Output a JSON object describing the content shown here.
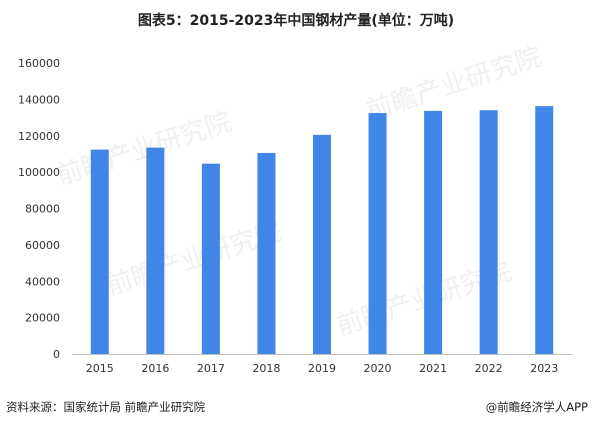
{
  "chart_data": {
    "type": "bar",
    "title": "图表5：2015-2023年中国钢材产量(单位：万吨)",
    "categories": [
      "2015",
      "2016",
      "2017",
      "2018",
      "2019",
      "2020",
      "2021",
      "2022",
      "2023"
    ],
    "series": [
      {
        "values": [
          112350,
          113460,
          104640,
          110550,
          120480,
          132490,
          133670,
          134030,
          136270
        ]
      }
    ],
    "ylim": [
      0,
      160000
    ],
    "yticks": [
      0,
      20000,
      40000,
      60000,
      80000,
      100000,
      120000,
      140000,
      160000
    ],
    "xlabel": "",
    "ylabel": "",
    "grid": false,
    "bar_color": "#3f86e6"
  },
  "footer": {
    "source": "资料来源：国家统计局 前瞻产业研究院",
    "brand": "@前瞻经济学人APP"
  },
  "watermark": {
    "name": "前瞻产业研究院"
  }
}
